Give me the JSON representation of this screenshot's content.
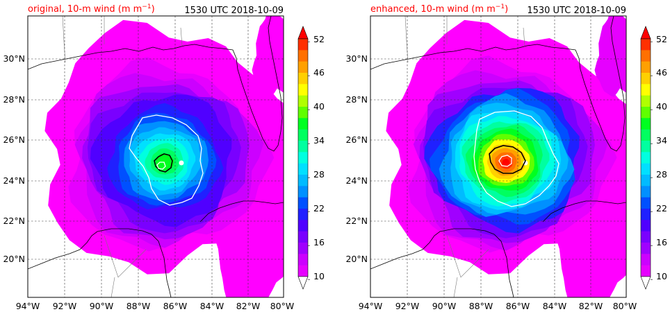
{
  "palette": [
    "#ff00ff",
    "#e600ff",
    "#cc00ff",
    "#a000ff",
    "#7a00ff",
    "#5000ff",
    "#2020ff",
    "#0050ff",
    "#0090ff",
    "#00bbff",
    "#00e0ff",
    "#00ffe0",
    "#00ffa0",
    "#00ff60",
    "#00ff20",
    "#60ff00",
    "#b0ff00",
    "#ffff00",
    "#ffd000",
    "#ffa000",
    "#ff7000",
    "#ff3000",
    "#ff0000"
  ],
  "colorbar": {
    "ticks": [
      "52",
      "46",
      "40",
      "34",
      "28",
      "22",
      "16",
      "10"
    ]
  },
  "axes": {
    "lat_labels": [
      "30°N",
      "28°N",
      "26°N",
      "24°N",
      "22°N",
      "20°N"
    ],
    "lon_labels": [
      "94°W",
      "92°W",
      "90°W",
      "88°W",
      "86°W",
      "84°W",
      "82°W",
      "80°W"
    ]
  },
  "panels": [
    {
      "title_left": "original, 10-m wind (m m",
      "title_left_sup": "−1",
      "title_left_end": ")",
      "title_right": "1530 UTC 2018-10-09"
    },
    {
      "title_left": "enhanced, 10-m wind (m m",
      "title_left_sup": "−1",
      "title_left_end": ")",
      "title_right": "1530 UTC 2018-10-09"
    }
  ]
}
